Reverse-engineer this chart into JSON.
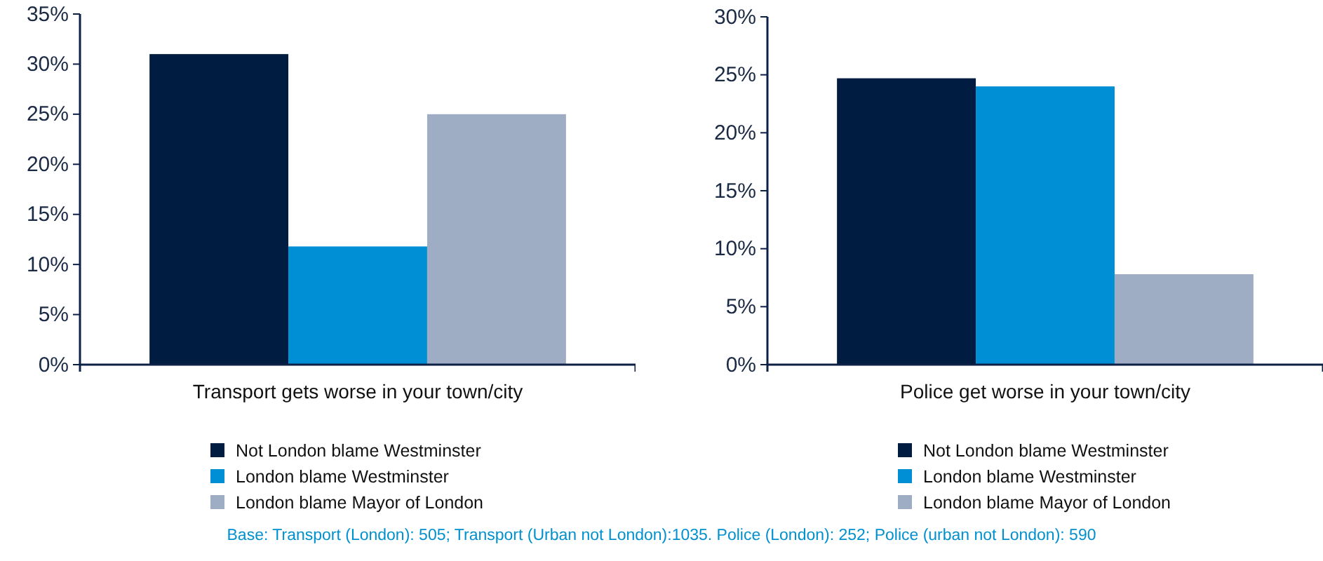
{
  "chart_data": [
    {
      "type": "bar",
      "categories": [
        "Transport gets worse in your town/city"
      ],
      "series": [
        {
          "name": "Not London blame Westminster",
          "color": "#001d41",
          "values": [
            31
          ]
        },
        {
          "name": "London blame Westminster",
          "color": "#008fd5",
          "values": [
            11.8
          ]
        },
        {
          "name": "London blame Mayor of London",
          "color": "#9eacc4",
          "values": [
            25
          ]
        }
      ],
      "ylim": [
        0,
        35
      ],
      "yticks": [
        {
          "value": 0,
          "label": "0%"
        },
        {
          "value": 5,
          "label": "5%"
        },
        {
          "value": 10,
          "label": "10%"
        },
        {
          "value": 15,
          "label": "15%"
        },
        {
          "value": 20,
          "label": "20%"
        },
        {
          "value": 25,
          "label": "25%"
        },
        {
          "value": 30,
          "label": "30%"
        },
        {
          "value": 35,
          "label": "35%"
        }
      ],
      "legend": "bottom",
      "annotations": [
        "Base: Transport (London): 505; Transport (Urban not London):1035. Police (London): 252; Police (urban not London): 590"
      ]
    },
    {
      "type": "bar",
      "categories": [
        "Police get worse in your town/city"
      ],
      "series": [
        {
          "name": "Not London blame Westminster",
          "color": "#001d41",
          "values": [
            24.7
          ]
        },
        {
          "name": "London blame Westminster",
          "color": "#008fd5",
          "values": [
            24
          ]
        },
        {
          "name": "London blame Mayor of London",
          "color": "#9eacc4",
          "values": [
            7.8
          ]
        }
      ],
      "ylim": [
        0,
        30
      ],
      "yticks": [
        {
          "value": 0,
          "label": "0%"
        },
        {
          "value": 5,
          "label": "5%"
        },
        {
          "value": 10,
          "label": "10%"
        },
        {
          "value": 15,
          "label": "15%"
        },
        {
          "value": 20,
          "label": "20%"
        },
        {
          "value": 25,
          "label": "25%"
        },
        {
          "value": 30,
          "label": "30%"
        }
      ],
      "legend": "bottom"
    }
  ]
}
